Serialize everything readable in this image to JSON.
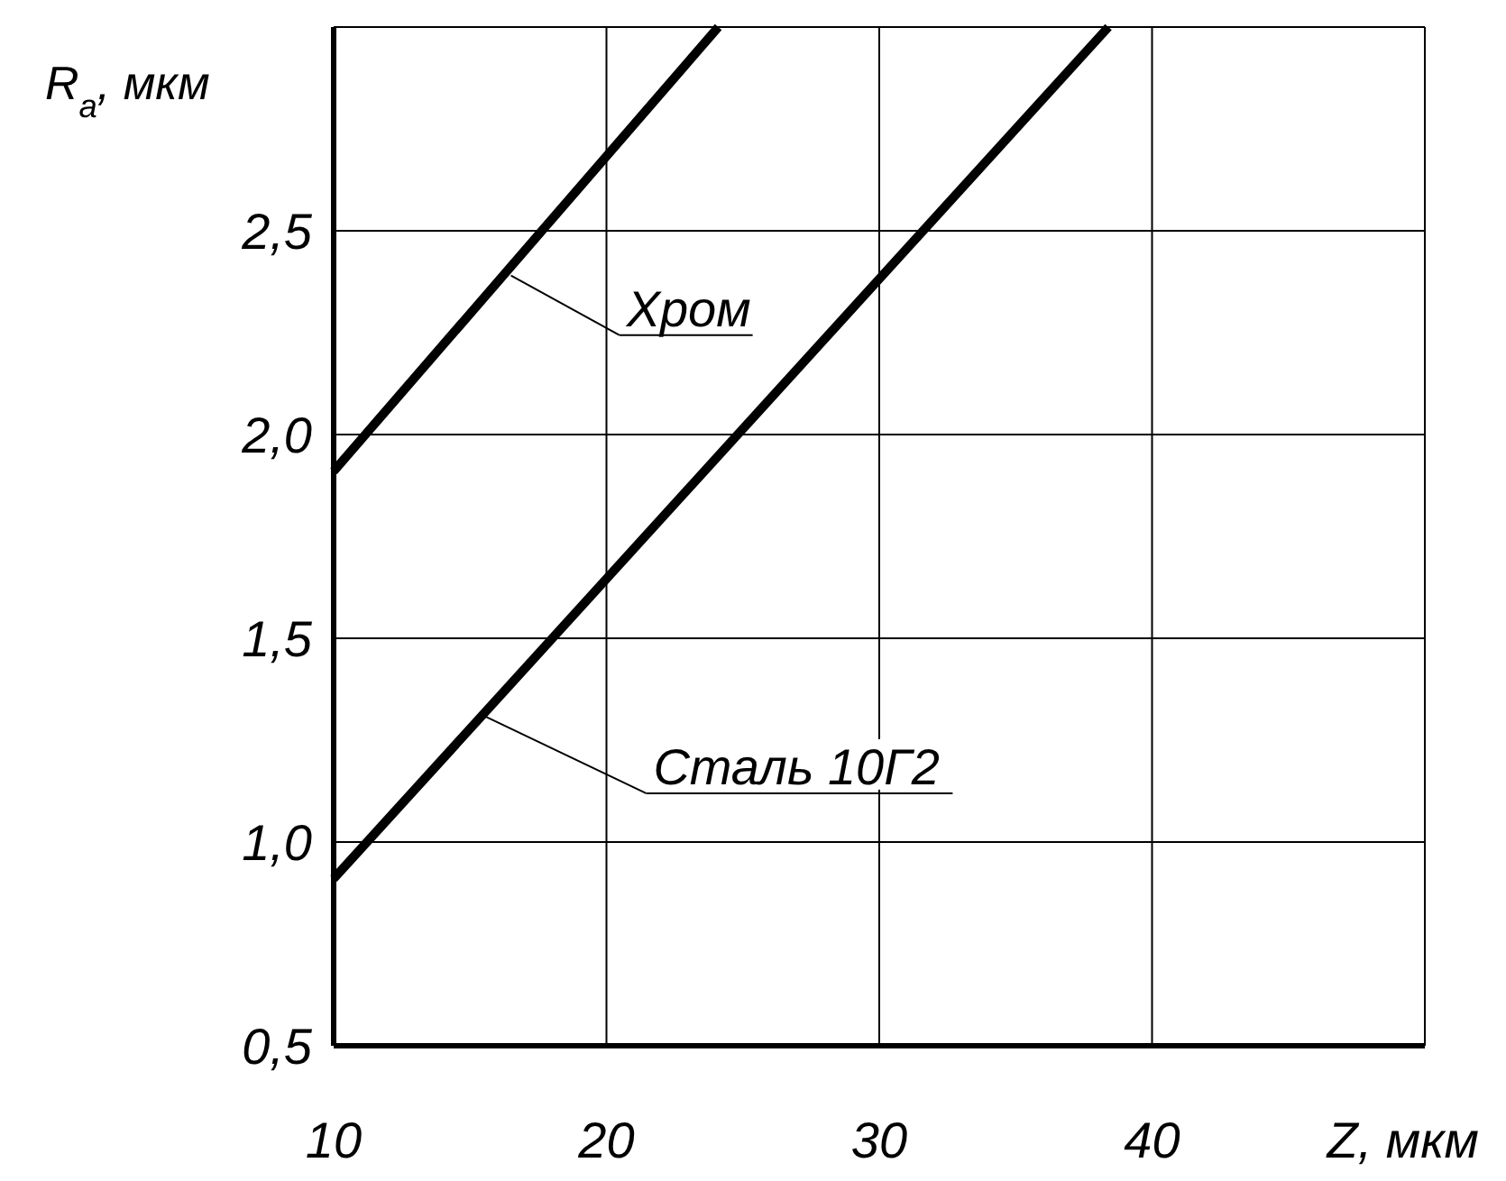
{
  "chart_data": {
    "type": "line",
    "xlabel": "Z, мкм",
    "ylabel": "R$_{a}$, мкм",
    "xlim": [
      10,
      50
    ],
    "ylim": [
      0.5,
      3.0
    ],
    "xticks": [
      10,
      20,
      30,
      40,
      {
        "value": 50,
        "label": null
      }
    ],
    "yticks": [
      {
        "value": 0.5,
        "label": "0,5"
      },
      {
        "value": 1.0,
        "label": "1,0"
      },
      {
        "value": 1.5,
        "label": "1,5"
      },
      {
        "value": 2.0,
        "label": "2,0"
      },
      {
        "value": 2.5,
        "label": "2,5"
      },
      {
        "value": 3.0,
        "label": null
      }
    ],
    "grid": true,
    "marker": "none",
    "line_style": "solid",
    "series": [
      {
        "color": "#000000",
        "x": [
          10,
          24.1
        ],
        "values": [
          1.91,
          3.0
        ]
      },
      {
        "color": "#000000",
        "x": [
          10,
          38.4
        ],
        "values": [
          0.91,
          3.0
        ]
      }
    ],
    "annotations": [
      {
        "text": "Хром",
        "x": 16.5,
        "y": 2.39
      },
      {
        "text": "Сталь 10Г2",
        "x": 15.5,
        "y": 1.31
      }
    ]
  }
}
